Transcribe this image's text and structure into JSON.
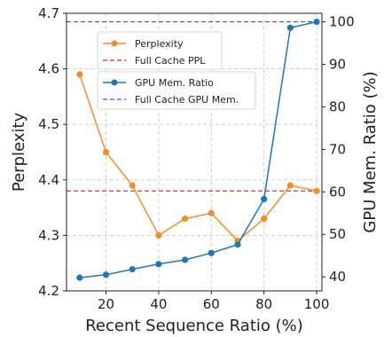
{
  "chart_data": {
    "type": "line",
    "xlabel": "Recent Sequence Ratio (%)",
    "ylabel_left": "Perplexity",
    "ylabel_right": "GPU Mem. Ratio (%)",
    "xlim": [
      5,
      102
    ],
    "ylim_left": [
      4.2,
      4.7
    ],
    "ylim_right": [
      36.7,
      102
    ],
    "x_ticks": [
      20,
      40,
      60,
      80,
      100
    ],
    "y_ticks_left": [
      4.2,
      4.3,
      4.4,
      4.5,
      4.6,
      4.7
    ],
    "y_ticks_right": [
      40,
      50,
      60,
      70,
      80,
      90,
      100
    ],
    "grid": true,
    "x": [
      10,
      20,
      30,
      40,
      50,
      60,
      70,
      80,
      90,
      100
    ],
    "series": [
      {
        "name": "Perplexity",
        "axis": "left",
        "color": "#f28e2b",
        "values": [
          4.59,
          4.45,
          4.39,
          4.3,
          4.33,
          4.34,
          4.29,
          4.33,
          4.39,
          4.38
        ]
      },
      {
        "name": "GPU Mem. Ratio",
        "axis": "right",
        "color": "#1f77b4",
        "values": [
          39.8,
          40.5,
          41.8,
          43.0,
          44.0,
          45.6,
          47.6,
          58.3,
          98.6,
          100.0
        ]
      }
    ],
    "reference_lines": [
      {
        "name": "Full Cache PPL",
        "axis": "left",
        "value": 4.38,
        "color": "#d62728",
        "style": "dashed"
      },
      {
        "name": "Full Cache GPU Mem.",
        "axis": "right",
        "value": 100,
        "color": "#3b5ba9",
        "style": "dashed"
      }
    ],
    "legend_placement": "upper-left-center"
  }
}
